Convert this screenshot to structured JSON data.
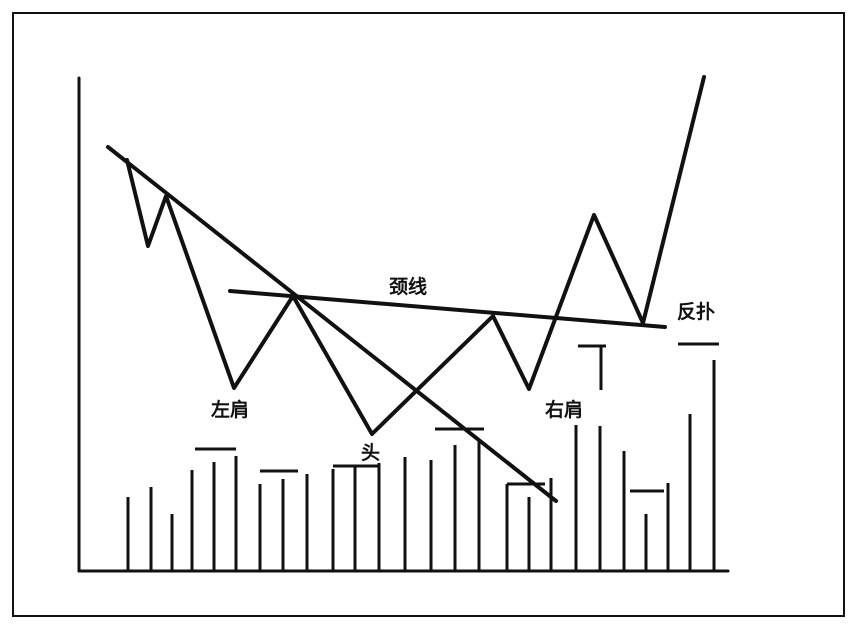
{
  "labels": {
    "neckline": "颈线",
    "pullback": "反扑",
    "left_shoulder": "左肩",
    "head": "头",
    "right_shoulder": "右肩"
  },
  "colors": {
    "ink": "#111111",
    "background": "#ffffff"
  }
}
